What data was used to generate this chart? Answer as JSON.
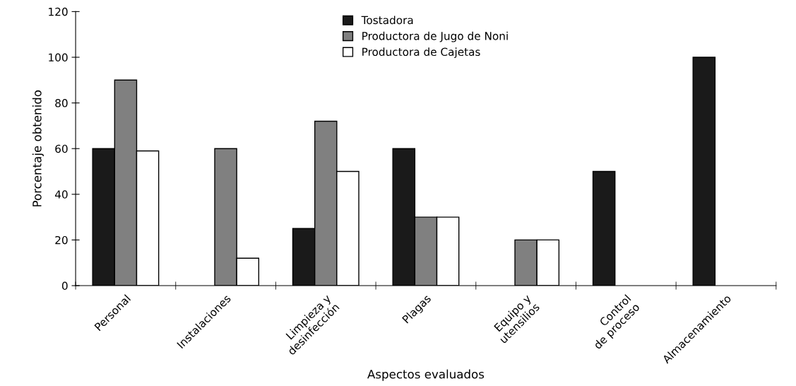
{
  "chart_data": {
    "type": "bar",
    "xlabel": "Aspectos evaluados",
    "ylabel": "Porcentaje obtenido",
    "categories": [
      "Personal",
      "Instalaciones",
      "Limpieza y\ndesinfección",
      "Plagas",
      "Equipo y\nutensilios",
      "Control\nde proceso",
      "Almacenamiento"
    ],
    "series": [
      {
        "name": "Tostadora",
        "color": "#1a1a1a",
        "values": [
          60,
          0,
          25,
          60,
          0,
          50,
          100
        ]
      },
      {
        "name": "Productora de Jugo de Noni",
        "color": "#808080",
        "values": [
          90,
          60,
          72,
          30,
          20,
          0,
          0
        ]
      },
      {
        "name": "Productora de Cajetas",
        "color": "#ffffff",
        "values": [
          59,
          12,
          50,
          30,
          20,
          0,
          0
        ]
      }
    ],
    "ylim": [
      0,
      120
    ],
    "yticks": [
      0,
      20,
      40,
      60,
      80,
      100,
      120
    ],
    "grid": false,
    "legend": "top"
  }
}
